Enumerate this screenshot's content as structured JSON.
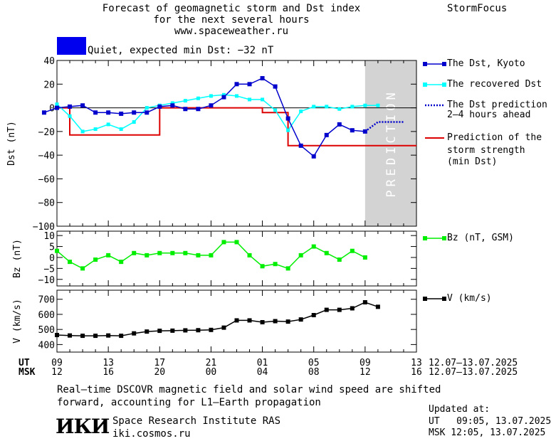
{
  "header": {
    "title_line1": "Forecast of geomagnetic storm and Dst index",
    "title_line2": "for the next several hours",
    "url": "www.spaceweather.ru",
    "brand": "StormFocus",
    "status_color": "#0000ee",
    "status_text": "Quiet, expected min Dst: −32 nT"
  },
  "legend": {
    "dst_kyoto": "The Dst, Kyoto",
    "dst_recovered": "The recovered Dst",
    "dst_pred_line1": "The Dst prediction",
    "dst_pred_line2": "2–4 hours ahead",
    "storm_line1": "Prediction of the",
    "storm_line2": "storm strength",
    "storm_line3": "(min Dst)",
    "bz": "Bz (nT, GSM)",
    "v": "V (km/s)"
  },
  "time_axis": {
    "ut_label": "UT",
    "msk_label": "MSK",
    "ut_ticks": [
      "09",
      "13",
      "17",
      "21",
      "01",
      "05",
      "09",
      "13"
    ],
    "msk_ticks": [
      "12",
      "16",
      "20",
      "00",
      "04",
      "08",
      "12",
      "16"
    ],
    "ut_range": "12.07–13.07.2025",
    "msk_range": "12.07–13.07.2025"
  },
  "footer": {
    "note_line1": "Real–time DSCOVR magnetic field and solar wind speed are shifted",
    "note_line2": "forward, accounting for L1–Earth propagation",
    "logo_text": "ИКИ",
    "institute": "Space Research Institute RAS",
    "site": "iki.cosmos.ru",
    "updated_label": "Updated at:",
    "updated_ut": "UT   09:05, 13.07.2025",
    "updated_msk": "MSK 12:05, 13.07.2025"
  },
  "colors": {
    "kyoto": "#0000cc",
    "recovered": "#00ffff",
    "prediction": "#0000cc",
    "storm": "#dd0000",
    "bz": "#00ee00",
    "v": "#000000",
    "prediction_band": "#d3d3d3"
  },
  "chart_data": [
    {
      "type": "line",
      "name": "dst",
      "ylabel": "Dst (nT)",
      "ylim": [
        -100,
        40
      ],
      "yticks": [
        40,
        20,
        0,
        -20,
        -40,
        -60,
        -80,
        -100
      ],
      "xlim": [
        0,
        28
      ],
      "prediction_band": [
        24,
        28
      ],
      "prediction_label": "PREDICTION",
      "series": [
        {
          "name": "The Dst, Kyoto",
          "x": [
            -1,
            0,
            1,
            2,
            3,
            4,
            5,
            6,
            7,
            8,
            9,
            10,
            11,
            12,
            13,
            14,
            15,
            16,
            17,
            18,
            19,
            20,
            21,
            22,
            23,
            24
          ],
          "y": [
            -4,
            0,
            1,
            2,
            -4,
            -4,
            -5,
            -4,
            -4,
            1,
            2,
            -1,
            -1,
            2,
            9,
            20,
            20,
            25,
            18,
            -9,
            -32,
            -41,
            -23,
            -14,
            -19,
            -20
          ]
        },
        {
          "name": "The recovered Dst",
          "x": [
            0,
            1,
            2,
            3,
            4,
            5,
            6,
            7,
            8,
            9,
            10,
            11,
            12,
            13,
            14,
            15,
            16,
            17,
            18,
            19,
            20,
            21,
            22,
            23,
            24,
            25
          ],
          "y": [
            3,
            -7,
            -20,
            -18,
            -14,
            -18,
            -12,
            0,
            2,
            4,
            6,
            8,
            10,
            11,
            10,
            7,
            7,
            -2,
            -19,
            -3,
            1,
            1,
            -1,
            1,
            2,
            2
          ]
        },
        {
          "name": "The Dst prediction 2–4 hours ahead",
          "x": [
            24,
            25,
            26,
            27
          ],
          "y": [
            -20,
            -12,
            -12,
            -12
          ]
        },
        {
          "name": "Prediction of the storm strength (min Dst)",
          "x": [
            0,
            1,
            1,
            8,
            8,
            15,
            15,
            16,
            16,
            17,
            17,
            18,
            18,
            28
          ],
          "y": [
            0,
            0,
            -23,
            -23,
            0,
            0,
            0,
            0,
            -4,
            -4,
            -4,
            -4,
            -32,
            -32
          ]
        }
      ]
    },
    {
      "type": "line",
      "name": "bz",
      "ylabel": "Bz (nT)",
      "ylim": [
        -13,
        12
      ],
      "yticks": [
        10,
        5,
        0,
        -5,
        -10
      ],
      "series": [
        {
          "name": "Bz (nT, GSM)",
          "x": [
            0,
            1,
            2,
            3,
            4,
            5,
            6,
            7,
            8,
            9,
            10,
            11,
            12,
            13,
            14,
            15,
            16,
            17,
            18,
            19,
            20,
            21,
            22,
            23,
            24,
            25
          ],
          "y": [
            3,
            -2,
            -5,
            -1,
            1,
            -2,
            2,
            1,
            2,
            2,
            2,
            1,
            1,
            7,
            7,
            1,
            -4,
            -3,
            -5,
            1,
            5,
            2,
            -1,
            3,
            0,
            null
          ]
        }
      ]
    },
    {
      "type": "line",
      "name": "v",
      "ylabel": "V (km/s)",
      "ylim": [
        350,
        760
      ],
      "yticks": [
        700,
        600,
        500,
        400
      ],
      "series": [
        {
          "name": "V (km/s)",
          "x": [
            0,
            1,
            2,
            3,
            4,
            5,
            6,
            7,
            8,
            9,
            10,
            11,
            12,
            13,
            14,
            15,
            16,
            17,
            18,
            19,
            20,
            21,
            22,
            23,
            24,
            25
          ],
          "y": [
            463,
            460,
            458,
            458,
            460,
            458,
            474,
            486,
            491,
            492,
            494,
            495,
            497,
            512,
            560,
            560,
            548,
            555,
            552,
            566,
            595,
            630,
            630,
            640,
            680,
            650
          ]
        }
      ]
    }
  ]
}
